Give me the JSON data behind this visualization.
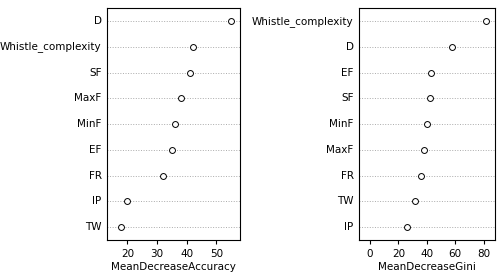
{
  "left": {
    "labels": [
      "D",
      "Whistle_complexity",
      "SF",
      "MaxF",
      "MinF",
      "EF",
      "FR",
      "IP",
      "TW"
    ],
    "values": [
      55,
      42,
      41,
      38,
      36,
      35,
      32,
      20,
      18
    ],
    "xlabel": "MeanDecreaseAccuracy",
    "xlim": [
      13,
      58
    ],
    "xticks": [
      20,
      30,
      40,
      50
    ]
  },
  "right": {
    "labels": [
      "Whistle_complexity",
      "D",
      "EF",
      "SF",
      "MinF",
      "MaxF",
      "FR",
      "TW",
      "IP"
    ],
    "values": [
      82,
      58,
      43,
      42,
      40,
      38,
      36,
      32,
      26
    ],
    "xlabel": "MeanDecreaseGini",
    "xlim": [
      -8,
      88
    ],
    "xticks": [
      0,
      20,
      40,
      60,
      80
    ]
  },
  "dot_color": "white",
  "dot_edgecolor": "black",
  "dot_size": 18,
  "dot_linewidth": 0.7,
  "grid_color": "#aaaaaa",
  "background_color": "white",
  "label_fontsize": 7.5,
  "xlabel_fontsize": 7.5,
  "tick_fontsize": 7.5
}
